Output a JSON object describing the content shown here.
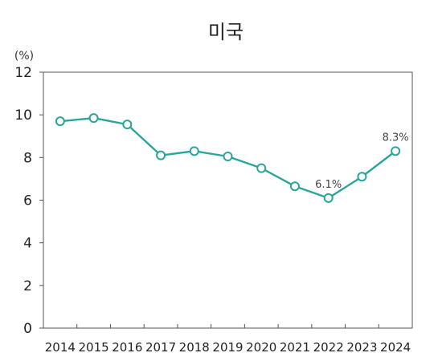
{
  "chart_data": {
    "type": "line",
    "title": "미국",
    "unit_label": "(%)",
    "xlabel": "",
    "ylabel": "",
    "categories": [
      "2014",
      "2015",
      "2016",
      "2017",
      "2018",
      "2019",
      "2020",
      "2021",
      "2022",
      "2023",
      "2024"
    ],
    "series": [
      {
        "values": [
          9.7,
          9.85,
          9.55,
          8.1,
          8.3,
          8.05,
          7.5,
          6.65,
          6.1,
          7.1,
          8.3
        ],
        "color": "#2aa59a"
      }
    ],
    "ylim": [
      0,
      12
    ],
    "yticks": [
      "0",
      "2",
      "4",
      "6",
      "8",
      "10",
      "12"
    ],
    "annotations": [
      {
        "index": 8,
        "text": "6.1%"
      },
      {
        "index": 10,
        "text": "8.3%"
      }
    ],
    "grid": false,
    "legend": "none"
  }
}
